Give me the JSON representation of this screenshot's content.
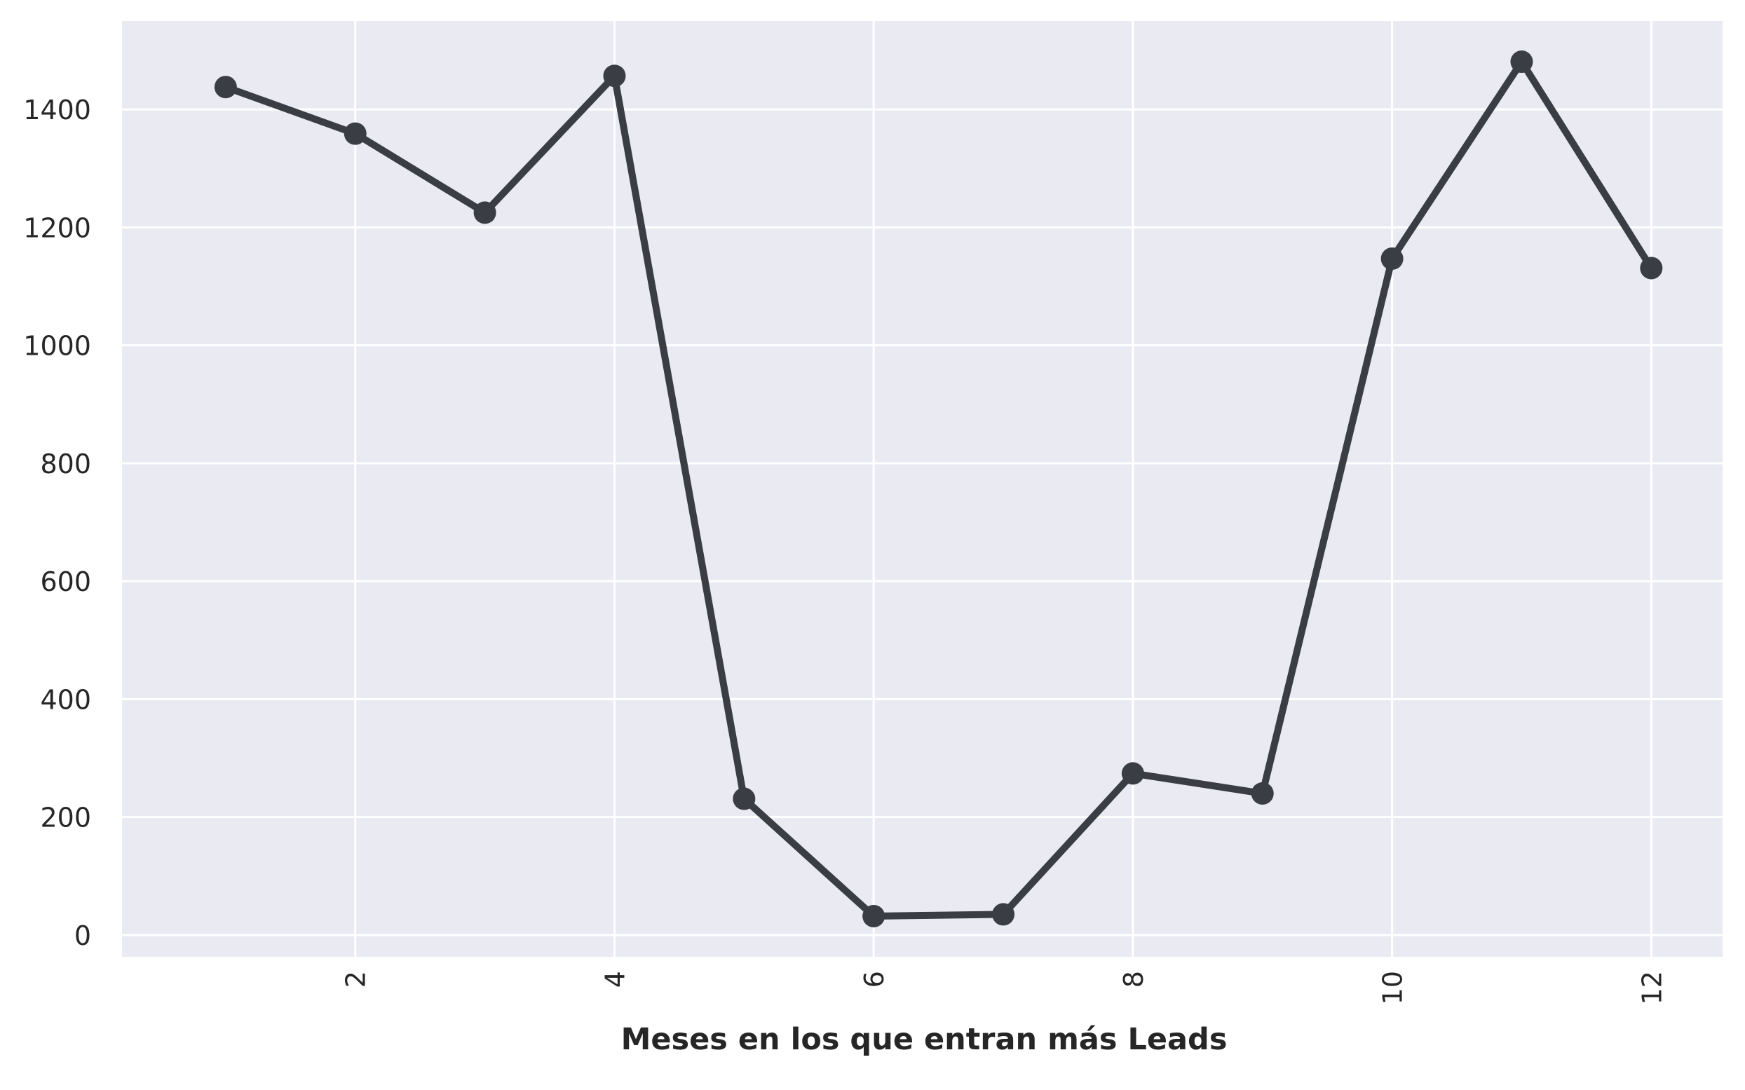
{
  "chart_data": {
    "type": "line",
    "title": "",
    "xlabel": "Meses en los que entran más Leads",
    "ylabel": "",
    "x": [
      1,
      2,
      3,
      4,
      5,
      6,
      7,
      8,
      9,
      10,
      11,
      12
    ],
    "series": [
      {
        "values": [
          1438,
          1359,
          1225,
          1457,
          231,
          32,
          35,
          274,
          240,
          1147,
          1481,
          1131
        ]
      }
    ],
    "xlim": [
      0.2,
      12.55
    ],
    "ylim": [
      -37,
      1550
    ],
    "xticks": [
      2,
      4,
      6,
      8,
      10,
      12
    ],
    "yticks": [
      0,
      200,
      400,
      600,
      800,
      1000,
      1200,
      1400
    ],
    "xtick_rotation": "vertical",
    "grid": true,
    "legend": "none",
    "colors": {
      "background": "#EAEAF2",
      "grid": "#FFFFFF",
      "line": "#3A3D44",
      "text": "#262626"
    }
  }
}
